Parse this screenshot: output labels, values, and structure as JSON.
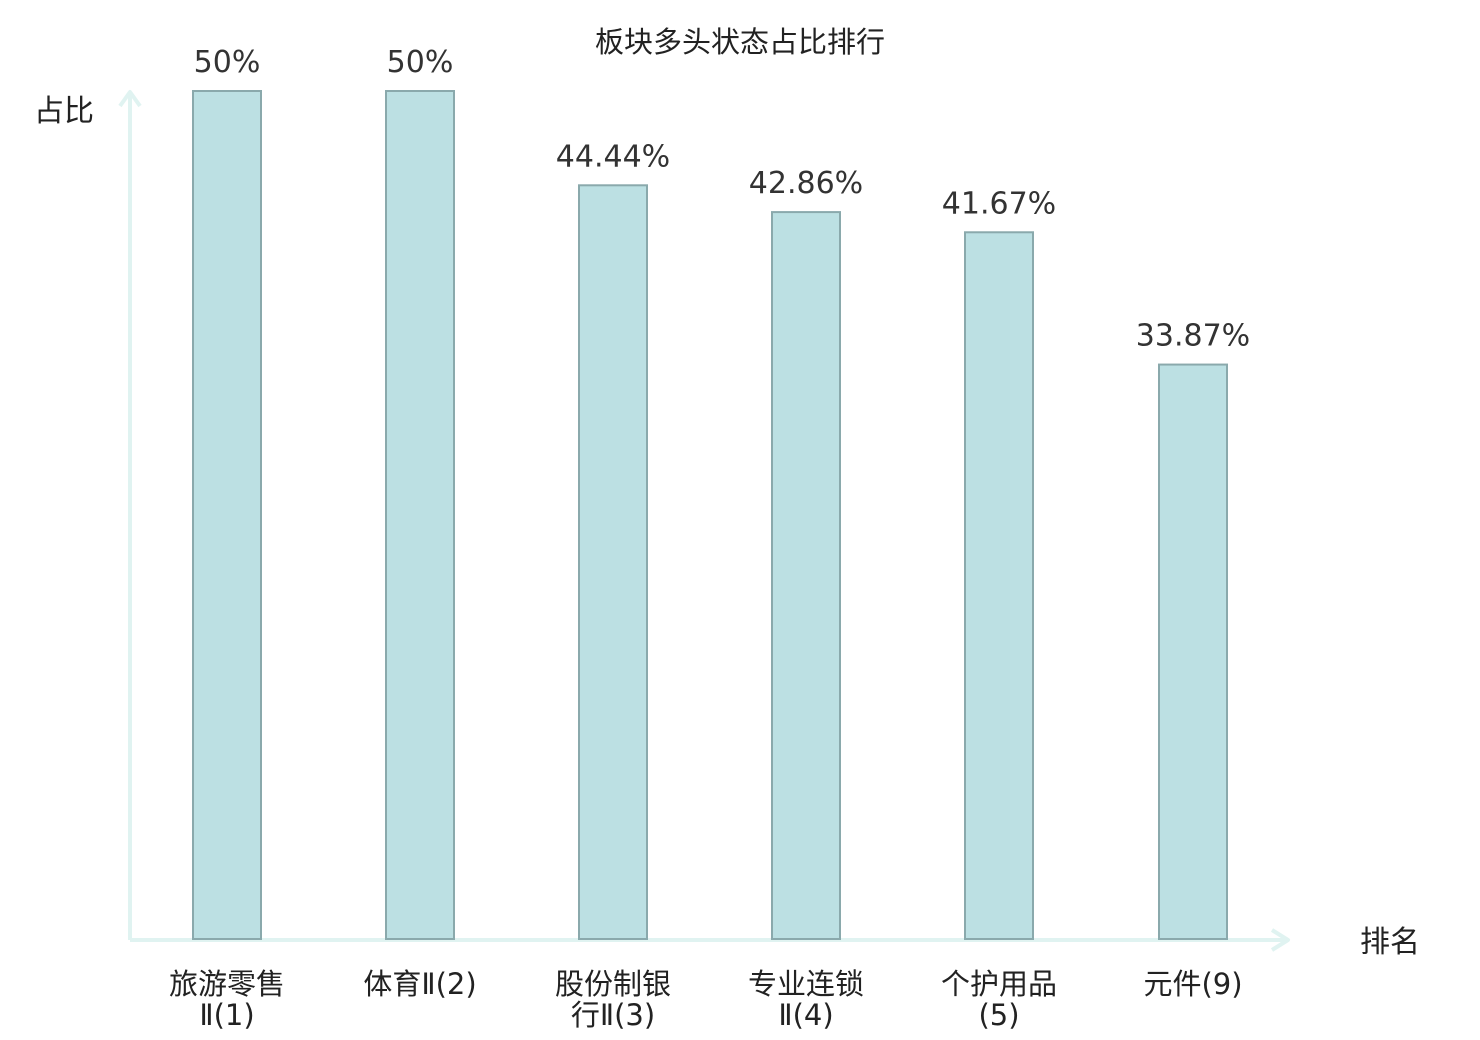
{
  "chart_data": {
    "type": "bar",
    "title": "板块多头状态占比排行",
    "ylabel": "占比",
    "xlabel": "排名",
    "ylim": [
      0,
      50
    ],
    "grid": false,
    "categories": [
      {
        "name": "旅游零售",
        "suffix": "Ⅱ(1)",
        "highlight": false
      },
      {
        "name": "体育",
        "suffix": "Ⅱ(2)",
        "highlight": false
      },
      {
        "name": "股份制银",
        "suffix": "行Ⅱ(3)",
        "highlight": false
      },
      {
        "name": "专业连锁",
        "suffix": "Ⅱ(4)",
        "highlight": false
      },
      {
        "name": "个护用品",
        "suffix": "(5)",
        "highlight": false
      },
      {
        "name": "元件",
        "suffix": "(9)",
        "highlight": true
      }
    ],
    "values": [
      50,
      50,
      44.44,
      42.86,
      41.67,
      33.87
    ],
    "value_labels": [
      "50%",
      "50%",
      "44.44%",
      "42.86%",
      "41.67%",
      "33.87%"
    ]
  },
  "colors": {
    "bar_fill": "#bce0e3",
    "bar_stroke": "#8aa9ac",
    "axis": "#e0f3f1",
    "text": "#222222",
    "value_text": "#333333",
    "highlight_text": "#e0201a"
  }
}
